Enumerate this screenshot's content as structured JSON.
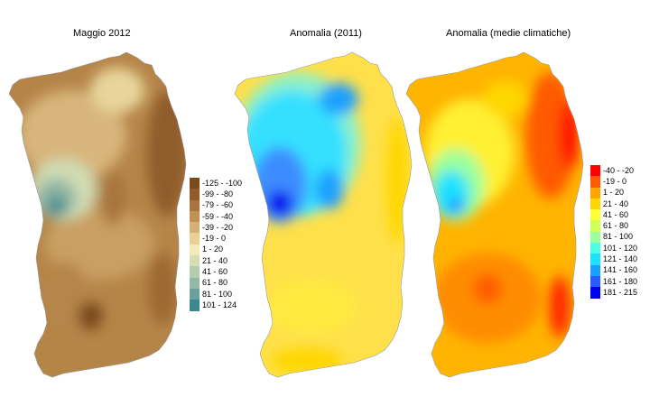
{
  "panels": [
    {
      "id": "rainfall",
      "title": "Maggio 2012",
      "legend": [
        {
          "label": "-125 - -100",
          "color": "#7a4a1c"
        },
        {
          "label": "-99 - -80",
          "color": "#8f5c2a"
        },
        {
          "label": "-79 - -60",
          "color": "#a8743e"
        },
        {
          "label": "-59 - -40",
          "color": "#c09055"
        },
        {
          "label": "-39 - -20",
          "color": "#d6af75"
        },
        {
          "label": "-19 - 0",
          "color": "#ead095"
        },
        {
          "label": "1 - 20",
          "color": "#f4eab8"
        },
        {
          "label": "21 - 40",
          "color": "#d6dfb4"
        },
        {
          "label": "41 - 60",
          "color": "#b5ccad"
        },
        {
          "label": "61 - 80",
          "color": "#94b8a6"
        },
        {
          "label": "81 - 100",
          "color": "#6aa09e"
        },
        {
          "label": "101 - 124",
          "color": "#3e878f"
        }
      ]
    },
    {
      "id": "anomaly-2011",
      "title": "Anomalia (2011)",
      "legend": []
    },
    {
      "id": "anomaly-climate",
      "title": "Anomalia (medie climatiche)",
      "legend": [
        {
          "label": "-40 - -20",
          "color": "#ff0000"
        },
        {
          "label": "-19 - 0",
          "color": "#ff5a00"
        },
        {
          "label": "1 - 20",
          "color": "#ffa500"
        },
        {
          "label": "21 - 40",
          "color": "#ffd700"
        },
        {
          "label": "41 - 60",
          "color": "#ffff33"
        },
        {
          "label": "61 - 80",
          "color": "#d2ff55"
        },
        {
          "label": "81 - 100",
          "color": "#9bff9b"
        },
        {
          "label": "101 - 120",
          "color": "#4dffe6"
        },
        {
          "label": "121 - 140",
          "color": "#1ee1ff"
        },
        {
          "label": "141 - 160",
          "color": "#1aa0ff"
        },
        {
          "label": "161 - 180",
          "color": "#2a5bff"
        },
        {
          "label": "181 - 215",
          "color": "#0000ee"
        }
      ]
    }
  ]
}
